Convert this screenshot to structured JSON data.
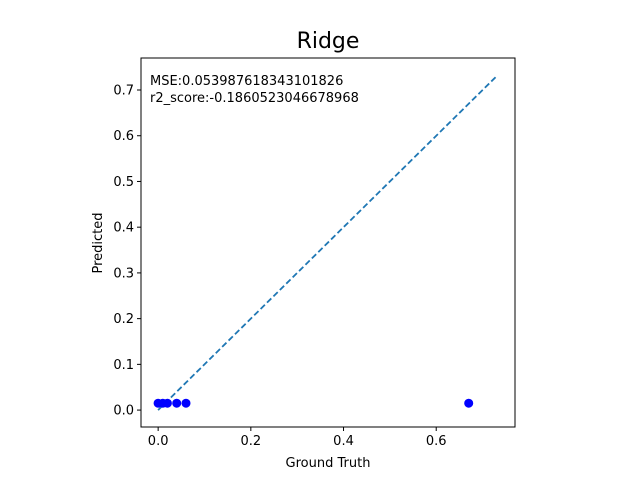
{
  "chart_data": {
    "type": "scatter",
    "title": "Ridge",
    "xlabel": "Ground Truth",
    "ylabel": "Predicted",
    "xlim": [
      -0.037,
      0.77
    ],
    "ylim": [
      -0.037,
      0.77
    ],
    "x_ticks": [
      0.0,
      0.2,
      0.4,
      0.6
    ],
    "y_ticks": [
      0.0,
      0.1,
      0.2,
      0.3,
      0.4,
      0.5,
      0.6,
      0.7
    ],
    "x_tick_labels": [
      "0.0",
      "0.2",
      "0.4",
      "0.6"
    ],
    "y_tick_labels": [
      "0.0",
      "0.1",
      "0.2",
      "0.3",
      "0.4",
      "0.5",
      "0.6",
      "0.7"
    ],
    "grid": false,
    "annotations": [
      "MSE:0.053987618343101826",
      "r2_score:-0.1860523046678968"
    ],
    "series": [
      {
        "type": "scatter",
        "color": "#0000ff",
        "x": [
          0.0,
          0.01,
          0.02,
          0.04,
          0.06,
          0.67
        ],
        "y": [
          0.015,
          0.015,
          0.015,
          0.015,
          0.015,
          0.015
        ]
      },
      {
        "type": "line",
        "style": "dashed",
        "color": "#1f77b4",
        "x": [
          0.0,
          0.73
        ],
        "y": [
          0.0,
          0.73
        ]
      }
    ]
  }
}
